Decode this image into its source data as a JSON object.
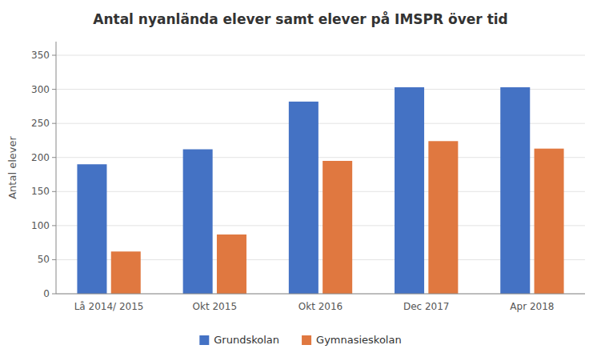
{
  "chart_data": {
    "type": "bar",
    "title": "Antal nyanlända elever samt elever på IMSPR över tid",
    "ylabel": "Antal elever",
    "categories": [
      "Lå 2014/ 2015",
      "Okt 2015",
      "Okt 2016",
      "Dec 2017",
      "Apr 2018"
    ],
    "series": [
      {
        "name": "Grundskolan",
        "color": "#4472C4",
        "values": [
          190,
          212,
          282,
          303,
          303
        ]
      },
      {
        "name": "Gymnasieskolan",
        "color": "#E07840",
        "values": [
          62,
          87,
          195,
          224,
          213
        ]
      }
    ],
    "ylim": [
      0,
      370
    ],
    "yticks": [
      0,
      50,
      100,
      150,
      200,
      250,
      300,
      350
    ],
    "grid": true,
    "legend": "bottom"
  }
}
